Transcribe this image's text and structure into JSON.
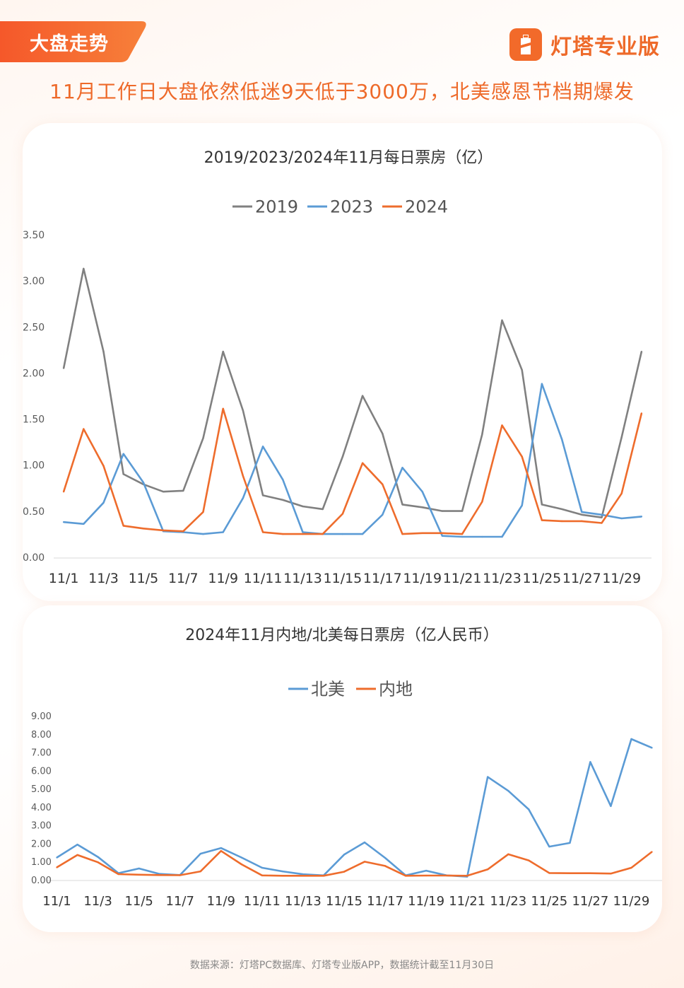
{
  "header": {
    "tag": "大盘走势",
    "brand": "灯塔专业版",
    "subtitle": "11月工作日大盘依然低迷9天低于3000万，北美感恩节档期爆发"
  },
  "colors": {
    "accent": "#f26a2a",
    "s2019": "#808080",
    "s2023": "#5b9bd5",
    "s2024": "#ee6c2c",
    "na": "#5b9bd5",
    "mainland": "#ee6c2c"
  },
  "footer": "数据来源：灯塔PC数据库、灯塔专业版APP，数据统计截至11月30日",
  "chart_data": [
    {
      "type": "line",
      "title": "2019/2023/2024年11月每日票房（亿）",
      "categories": [
        "11/1",
        "11/2",
        "11/3",
        "11/4",
        "11/5",
        "11/6",
        "11/7",
        "11/8",
        "11/9",
        "11/10",
        "11/11",
        "11/12",
        "11/13",
        "11/14",
        "11/15",
        "11/16",
        "11/17",
        "11/18",
        "11/19",
        "11/20",
        "11/21",
        "11/22",
        "11/23",
        "11/24",
        "11/25",
        "11/26",
        "11/27",
        "11/28",
        "11/29",
        "11/30"
      ],
      "tick_labels": [
        "11/1",
        "11/3",
        "11/5",
        "11/7",
        "11/9",
        "11/11",
        "11/13",
        "11/15",
        "11/17",
        "11/19",
        "11/21",
        "11/23",
        "11/25",
        "11/27",
        "11/29"
      ],
      "yticks": [
        "0.00",
        "0.50",
        "1.00",
        "1.50",
        "2.00",
        "2.50",
        "3.00",
        "3.50"
      ],
      "ylim": [
        0,
        3.5
      ],
      "legend": "top",
      "series": [
        {
          "name": "2019",
          "values": [
            2.06,
            3.14,
            2.24,
            0.91,
            0.8,
            0.72,
            0.73,
            1.3,
            2.24,
            1.6,
            0.68,
            0.63,
            0.56,
            0.53,
            1.1,
            1.76,
            1.35,
            0.58,
            0.55,
            0.51,
            0.51,
            1.34,
            2.58,
            2.04,
            0.58,
            0.53,
            0.47,
            0.44,
            1.31,
            2.24
          ]
        },
        {
          "name": "2023",
          "values": [
            0.39,
            0.37,
            0.6,
            1.13,
            0.82,
            0.29,
            0.28,
            0.26,
            0.28,
            0.65,
            1.21,
            0.85,
            0.28,
            0.26,
            0.26,
            0.26,
            0.47,
            0.98,
            0.72,
            0.24,
            0.23,
            0.23,
            0.23,
            0.57,
            1.89,
            1.29,
            0.5,
            0.47,
            0.43,
            0.45
          ]
        },
        {
          "name": "2024",
          "values": [
            0.72,
            1.4,
            1.0,
            0.35,
            0.32,
            0.3,
            0.29,
            0.5,
            1.62,
            0.89,
            0.28,
            0.26,
            0.26,
            0.26,
            0.48,
            1.03,
            0.8,
            0.26,
            0.27,
            0.27,
            0.26,
            0.61,
            1.44,
            1.1,
            0.41,
            0.4,
            0.4,
            0.38,
            0.7,
            1.57
          ]
        }
      ]
    },
    {
      "type": "line",
      "title": "2024年11月内地/北美每日票房（亿人民币）",
      "categories": [
        "11/1",
        "11/2",
        "11/3",
        "11/4",
        "11/5",
        "11/6",
        "11/7",
        "11/8",
        "11/9",
        "11/10",
        "11/11",
        "11/12",
        "11/13",
        "11/14",
        "11/15",
        "11/16",
        "11/17",
        "11/18",
        "11/19",
        "11/20",
        "11/21",
        "11/22",
        "11/23",
        "11/24",
        "11/25",
        "11/26",
        "11/27",
        "11/28",
        "11/29",
        "11/30"
      ],
      "tick_labels": [
        "11/1",
        "11/3",
        "11/5",
        "11/7",
        "11/9",
        "11/11",
        "11/13",
        "11/15",
        "11/17",
        "11/19",
        "11/21",
        "11/23",
        "11/25",
        "11/27",
        "11/29"
      ],
      "yticks": [
        "0.00",
        "1.00",
        "2.00",
        "3.00",
        "4.00",
        "5.00",
        "6.00",
        "7.00",
        "8.00",
        "9.00"
      ],
      "ylim": [
        0,
        9
      ],
      "legend": "top",
      "series": [
        {
          "name": "北美",
          "values": [
            1.26,
            1.97,
            1.29,
            0.4,
            0.66,
            0.36,
            0.3,
            1.47,
            1.78,
            1.26,
            0.7,
            0.5,
            0.34,
            0.28,
            1.42,
            2.09,
            1.24,
            0.28,
            0.54,
            0.28,
            0.21,
            5.68,
            4.92,
            3.9,
            1.86,
            2.06,
            6.5,
            4.08,
            7.76,
            7.28
          ]
        },
        {
          "name": "内地",
          "values": [
            0.72,
            1.4,
            1.0,
            0.35,
            0.32,
            0.3,
            0.29,
            0.5,
            1.62,
            0.89,
            0.28,
            0.26,
            0.26,
            0.26,
            0.48,
            1.03,
            0.8,
            0.26,
            0.27,
            0.27,
            0.26,
            0.61,
            1.44,
            1.1,
            0.41,
            0.4,
            0.4,
            0.38,
            0.7,
            1.57
          ]
        }
      ]
    }
  ]
}
